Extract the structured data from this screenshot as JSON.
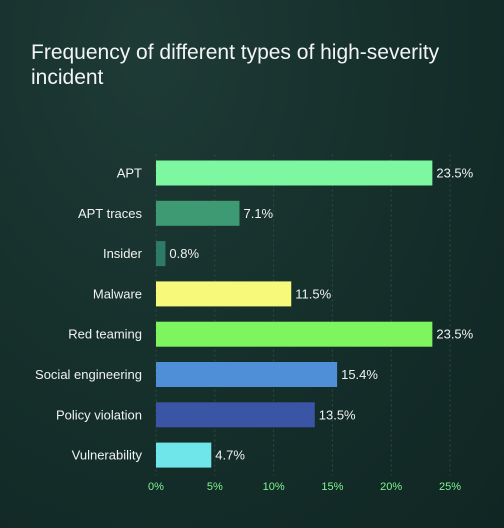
{
  "chart_data": {
    "type": "bar",
    "orientation": "horizontal",
    "title": "Frequency of different types of high-severity incident",
    "categories": [
      "APT",
      "APT traces",
      "Insider",
      "Malware",
      "Red teaming",
      "Social engineering",
      "Policy violation",
      "Vulnerability"
    ],
    "values": [
      23.5,
      7.1,
      0.8,
      11.5,
      23.5,
      15.4,
      13.5,
      4.7
    ],
    "value_labels": [
      "23.5%",
      "7.1%",
      "0.8%",
      "11.5%",
      "23.5%",
      "15.4%",
      "13.5%",
      "4.7%"
    ],
    "colors": [
      "#7df7a0",
      "#3e9a72",
      "#2e7a68",
      "#f6f97a",
      "#7ef55e",
      "#4f8fd8",
      "#3a55a6",
      "#6fe6ea"
    ],
    "xlim": [
      0,
      25
    ],
    "xticks": [
      0,
      5,
      10,
      15,
      20,
      25
    ],
    "xtick_labels": [
      "0%",
      "5%",
      "10%",
      "15%",
      "20%",
      "25%"
    ],
    "grid": true,
    "xlabel": "",
    "ylabel": ""
  }
}
